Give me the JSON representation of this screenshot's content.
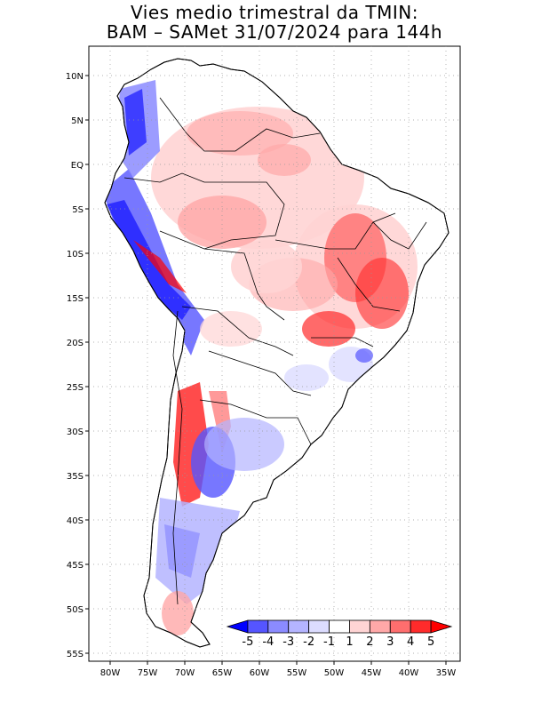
{
  "title": {
    "line1": "Vies medio trimestral da TMIN:",
    "line2": "BAM – SAMet 31/07/2024  para 144h"
  },
  "axes": {
    "lat_labels": [
      "10N",
      "5N",
      "EQ",
      "5S",
      "10S",
      "15S",
      "20S",
      "25S",
      "30S",
      "35S",
      "40S",
      "45S",
      "50S",
      "55S"
    ],
    "lon_labels": [
      "80W",
      "75W",
      "70W",
      "65W",
      "60W",
      "55W",
      "50W",
      "45W",
      "40W",
      "35W"
    ]
  },
  "colorbar": {
    "labels": [
      "-5",
      "-4",
      "-3",
      "-2",
      "-1",
      "1",
      "2",
      "3",
      "4",
      "5"
    ],
    "colors": [
      "#0000ff",
      "#5555ff",
      "#8b8bff",
      "#b4b4ff",
      "#dcdcff",
      "#ffffff",
      "#ffd4d4",
      "#ffa8a8",
      "#ff6e6e",
      "#ff2b2b",
      "#ff0000"
    ]
  },
  "style": {
    "grid": "dotted",
    "coastline_color": "#000000"
  }
}
